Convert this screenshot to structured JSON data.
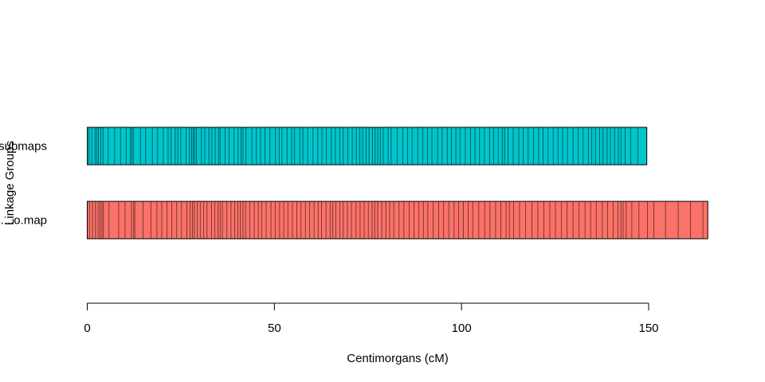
{
  "chart_data": {
    "type": "linkage-map",
    "xlabel": "Centimorgans (cM)",
    "ylabel": "Linkage Groups",
    "xlim": [
      0,
      150
    ],
    "x_ticks": [
      0,
      50,
      100,
      150
    ],
    "x_tick_labels": [
      "0",
      "50",
      "100",
      "150"
    ],
    "series": [
      {
        "name": "....submaps",
        "color": "#00C5CD",
        "length": 149.5,
        "markers": [
          0.4,
          1.2,
          2.1,
          2.6,
          3.0,
          3.6,
          4.2,
          5.6,
          7.3,
          8.9,
          10.4,
          11.5,
          11.9,
          12.3,
          14.2,
          15.6,
          17.4,
          18.8,
          20.3,
          21.6,
          22.4,
          23.5,
          24.2,
          25.0,
          26.4,
          27.3,
          27.9,
          28.3,
          28.7,
          29.2,
          30.5,
          31.4,
          32.5,
          33.3,
          34.2,
          35.1,
          35.5,
          36.8,
          37.9,
          39.2,
          40.3,
          41.1,
          41.6,
          42.4,
          44.0,
          45.2,
          46.3,
          47.5,
          48.8,
          50.3,
          51.3,
          52.0,
          53.4,
          54.6,
          55.4,
          56.8,
          57.6,
          58.9,
          60.3,
          61.6,
          62.7,
          63.9,
          65.2,
          66.3,
          67.5,
          68.4,
          69.6,
          70.8,
          71.9,
          72.8,
          73.6,
          74.5,
          75.3,
          76.2,
          76.9,
          77.6,
          78.3,
          79.1,
          80.4,
          81.2,
          82.8,
          84.3,
          85.6,
          86.8,
          88.3,
          89.6,
          90.9,
          92.1,
          93.6,
          94.8,
          96.2,
          97.3,
          98.5,
          99.6,
          101.0,
          102.4,
          103.6,
          104.8,
          106.1,
          107.5,
          108.6,
          109.8,
          110.9,
          111.5,
          112.4,
          113.8,
          115.3,
          116.5,
          117.8,
          119.2,
          120.6,
          121.8,
          123.1,
          124.5,
          125.8,
          127.0,
          128.3,
          129.8,
          131.2,
          132.5,
          133.9,
          134.8,
          135.8,
          136.9,
          137.8,
          138.9,
          139.8,
          140.9,
          141.9,
          142.6,
          143.7,
          145.2,
          147.1
        ]
      },
      {
        "name": "....o.map",
        "color": "#FA7268",
        "length": 165.8,
        "markers": [
          0.6,
          1.4,
          2.2,
          2.9,
          3.4,
          3.9,
          4.3,
          5.8,
          8.4,
          10.1,
          11.8,
          12.4,
          12.7,
          14.9,
          17.0,
          18.6,
          19.9,
          21.3,
          22.6,
          23.9,
          25.2,
          26.6,
          27.5,
          28.1,
          28.6,
          29.4,
          30.2,
          31.1,
          32.0,
          33.2,
          34.1,
          34.9,
          35.5,
          36.1,
          37.3,
          38.4,
          39.4,
          40.2,
          40.9,
          41.6,
          42.3,
          43.4,
          44.6,
          45.7,
          46.6,
          47.8,
          49.1,
          50.2,
          51.4,
          52.5,
          53.6,
          54.8,
          56.0,
          57.1,
          58.3,
          59.4,
          60.6,
          61.7,
          62.6,
          63.8,
          64.9,
          65.6,
          66.4,
          67.5,
          68.4,
          69.5,
          70.6,
          71.8,
          72.9,
          74.0,
          75.1,
          76.1,
          76.8,
          77.6,
          78.7,
          79.8,
          80.8,
          81.9,
          83.3,
          84.6,
          86.0,
          87.3,
          88.6,
          89.8,
          91.0,
          92.4,
          93.9,
          95.2,
          96.6,
          98.0,
          99.2,
          100.5,
          101.8,
          103.0,
          104.6,
          106.2,
          107.6,
          109.1,
          110.5,
          111.9,
          112.8,
          113.9,
          115.5,
          117.1,
          118.8,
          120.4,
          122.0,
          123.6,
          125.1,
          126.7,
          128.2,
          129.8,
          131.4,
          133.0,
          134.5,
          136.0,
          137.6,
          139.0,
          140.5,
          141.8,
          142.6,
          143.2,
          144.0,
          145.5,
          147.4,
          149.7,
          151.4,
          154.5,
          157.9,
          161.2,
          164.5
        ]
      }
    ]
  }
}
